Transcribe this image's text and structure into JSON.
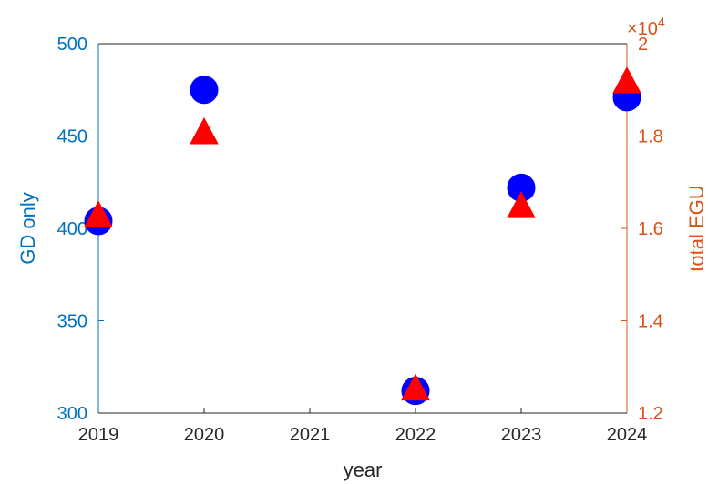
{
  "chart_data": {
    "type": "scatter",
    "x": [
      2019,
      2020,
      2022,
      2023,
      2024
    ],
    "xlim": [
      2019,
      2024
    ],
    "xticks": [
      2019,
      2020,
      2021,
      2022,
      2023,
      2024
    ],
    "xlabel": "year",
    "y_left": {
      "label": "GD only",
      "lim": [
        300,
        500
      ],
      "ticks": [
        300,
        350,
        400,
        450,
        500
      ],
      "color": "#0072BD"
    },
    "y_right": {
      "label": "total EGU",
      "lim": [
        12000,
        20000
      ],
      "ticks": [
        12000,
        14000,
        16000,
        18000,
        20000
      ],
      "tick_labels": [
        "1.2",
        "1.4",
        "1.6",
        "1.8",
        "2"
      ],
      "exponent_label": "×10",
      "exponent_power": "4",
      "color": "#D95319"
    },
    "series": [
      {
        "axis": "left",
        "marker": "circle",
        "color": "#0000FF",
        "values": [
          404,
          475,
          312,
          422,
          471
        ]
      },
      {
        "axis": "right",
        "marker": "triangle",
        "color": "#FF0000",
        "values": [
          16250,
          18050,
          12500,
          16450,
          19150
        ]
      }
    ],
    "grid": false
  }
}
